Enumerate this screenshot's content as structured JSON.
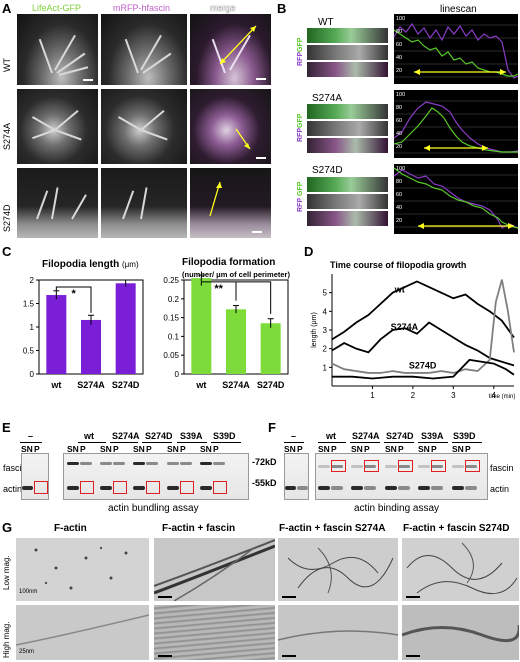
{
  "panels": {
    "A": {
      "label": "A",
      "columns": [
        "LifeAct-GFP",
        "mRFP-hfascin",
        "merge"
      ],
      "column_colors": [
        "#7fd13a",
        "#c060c8",
        "#ffffff"
      ],
      "rows": [
        "WT",
        "S274A",
        "S274D"
      ]
    },
    "B": {
      "label": "B",
      "title": "linescan",
      "rows": [
        "WT",
        "S274A",
        "S274D"
      ],
      "channel_labels": [
        "GFP",
        "RFP"
      ],
      "y_ticks": [
        "100",
        "80",
        "60",
        "40",
        "20"
      ],
      "series_colors": {
        "gfp": "#58c828",
        "rfp": "#8a3cc8"
      }
    },
    "C": {
      "label": "C",
      "left_title": "Filopodia length",
      "left_unit": "(μm)",
      "right_title": "Filopodia formation",
      "right_subtitle": "(number/ μm of cell perimeter)",
      "left_sig": "*",
      "right_sig": "**"
    },
    "D": {
      "label": "D",
      "title": "Time course of filopodia growth",
      "ylabel": "length (μm)",
      "xunit": "time (min)",
      "series_labels": [
        "wt",
        "S274A",
        "S274D"
      ]
    },
    "E": {
      "label": "E",
      "caption": "actin bundling assay",
      "lanes_header": [
        "–",
        "wt",
        "S274A",
        "S274D",
        "S39A",
        "S39D"
      ],
      "sub_lanes": [
        "SN",
        "P"
      ],
      "row_labels": [
        "fascin",
        "actin"
      ],
      "markers": [
        "-72kD",
        "-55kD"
      ]
    },
    "F": {
      "label": "F",
      "caption": "actin binding assay",
      "lanes_header": [
        "–",
        "wt",
        "S274A",
        "S274D",
        "S39A",
        "S39D"
      ],
      "sub_lanes": [
        "SN",
        "P"
      ],
      "row_labels": [
        "fascin",
        "actin"
      ]
    },
    "G": {
      "label": "G",
      "columns": [
        "F-actin",
        "F-actin + fascin",
        "F-actin + fascin S274A",
        "F-actin + fascin S274D"
      ],
      "rows": [
        "Low mag.",
        "High mag."
      ],
      "scale_low": "100nm",
      "scale_high": "25nm"
    }
  },
  "chart_data": [
    {
      "type": "bar",
      "title": "Filopodia length",
      "ylabel": "(μm)",
      "categories": [
        "wt",
        "S274A",
        "S274D"
      ],
      "values": [
        1.68,
        1.15,
        1.93
      ],
      "errors": [
        0.09,
        0.1,
        0.07
      ],
      "ylim": [
        0,
        2
      ],
      "yticks": [
        0,
        0.5,
        1,
        1.5,
        2
      ],
      "color": "#7a1ed8"
    },
    {
      "type": "bar",
      "title": "Filopodia formation",
      "subtitle": "(number/ μm of cell perimeter)",
      "categories": [
        "wt",
        "S274A",
        "S274D"
      ],
      "values": [
        0.255,
        0.172,
        0.135
      ],
      "errors": [
        0.008,
        0.01,
        0.012
      ],
      "ylim": [
        0,
        0.25
      ],
      "yticks": [
        0,
        0.05,
        0.1,
        0.15,
        0.2,
        0.25
      ],
      "color": "#7edc3a"
    },
    {
      "type": "line",
      "title": "Time course of filopodia growth",
      "ylabel": "length (μm)",
      "xlabel": "time (min)",
      "xlim": [
        0,
        4.5
      ],
      "ylim": [
        0,
        6
      ],
      "xticks": [
        1,
        2,
        3,
        4
      ],
      "yticks": [
        1,
        2,
        3,
        4,
        5
      ],
      "series": [
        {
          "name": "wt",
          "color": "#000000",
          "x": [
            0,
            0.3,
            0.6,
            0.9,
            1.2,
            1.5,
            1.8,
            2.1,
            2.4,
            2.7,
            3.0,
            3.3,
            3.6,
            3.9,
            4.2,
            4.5
          ],
          "y": [
            2.5,
            2.9,
            3.4,
            3.8,
            4.4,
            5.0,
            5.3,
            5.6,
            5.3,
            5.0,
            4.7,
            4.9,
            4.4,
            4.0,
            3.5,
            2.6
          ]
        },
        {
          "name": "S274A",
          "color": "#000000",
          "x": [
            0,
            0.3,
            0.6,
            0.9,
            1.2,
            1.5,
            1.8,
            2.1,
            2.4,
            2.7,
            3.0,
            3.3,
            3.6,
            3.9,
            4.2,
            4.5
          ],
          "y": [
            1.9,
            2.3,
            2.0,
            1.8,
            2.5,
            3.0,
            3.1,
            2.8,
            3.4,
            3.0,
            2.6,
            2.2,
            1.9,
            1.5,
            1.3,
            1.1
          ]
        },
        {
          "name": "S274D",
          "color": "#808080",
          "x": [
            0,
            0.3,
            0.6,
            0.9,
            1.2,
            1.5,
            1.8,
            2.1,
            2.4,
            2.7,
            3.0,
            3.3,
            3.6,
            3.9,
            4.05,
            4.2,
            4.35,
            4.5
          ],
          "y": [
            1.2,
            0.9,
            0.8,
            0.7,
            0.7,
            0.8,
            0.7,
            0.7,
            0.7,
            0.8,
            0.7,
            0.9,
            0.8,
            1.4,
            4.5,
            5.7,
            4.0,
            1.8
          ]
        },
        {
          "name": "",
          "color": "#000000",
          "x": [
            0,
            0.5,
            1.0,
            1.5,
            2.0,
            2.5,
            3.0,
            3.4,
            3.7,
            4.0,
            4.3,
            4.5
          ],
          "y": [
            0.5,
            0.5,
            0.4,
            0.5,
            0.5,
            0.4,
            0.5,
            1.4,
            1.3,
            1.2,
            0.9,
            0.6
          ]
        }
      ]
    }
  ]
}
